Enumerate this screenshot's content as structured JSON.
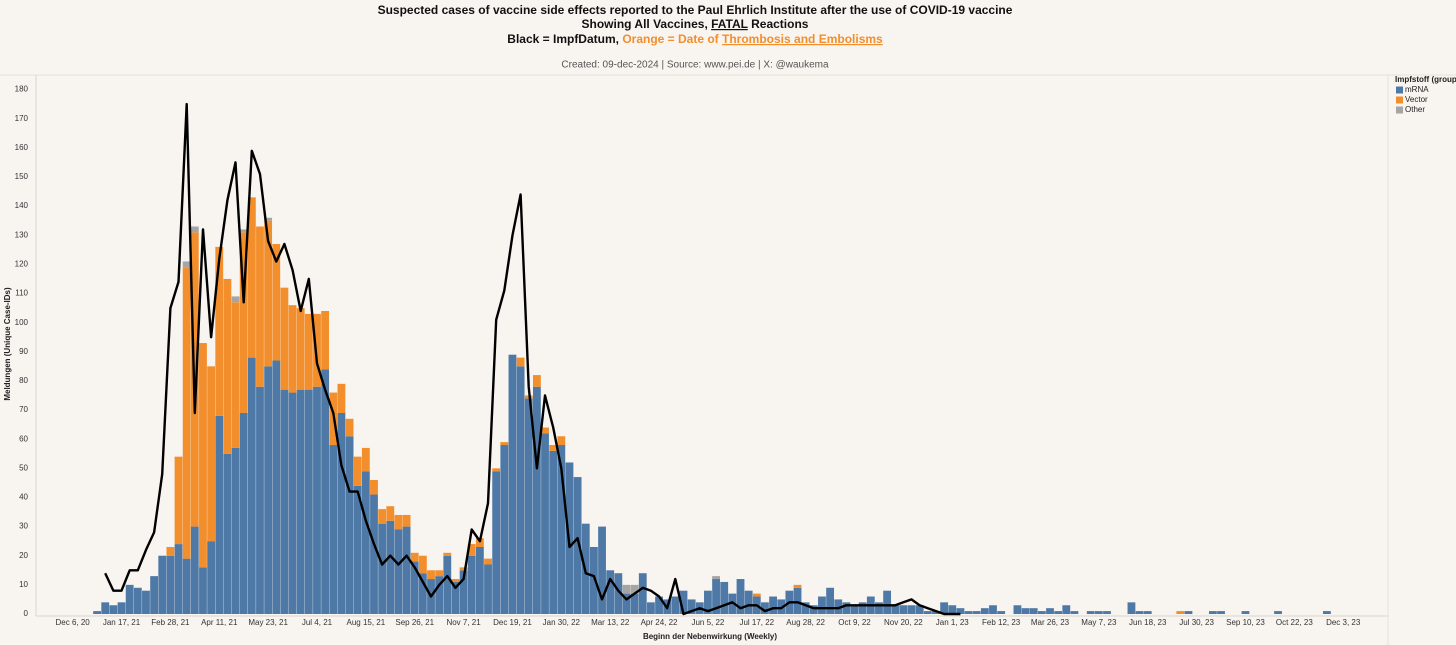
{
  "chart_data": {
    "type": "bar",
    "title": [
      [
        "Suspected cases of vaccine side effects reported to the Paul Ehrlich Institute after the use of COVID-19 vaccine"
      ],
      [
        "Showing All Vaccines, ",
        "FATAL",
        " Reactions"
      ],
      [
        "Black = ImpfDatum, ",
        "Orange = Date of ",
        "Thrombosis and Embolisms"
      ]
    ],
    "subtitle": "Created: 09-dec-2024 | Source: www.pei.de | X: @waukema",
    "y_label": "Meldungen (Unique Case-IDs)",
    "x_label": "Beginn der Nebenwirkung (Weekly)",
    "legend_title": "Impfstoff (group)",
    "legend": "right",
    "grid": false,
    "stacked": true,
    "ylim": [
      0,
      185
    ],
    "yticks": [
      0,
      10,
      20,
      30,
      40,
      50,
      60,
      70,
      80,
      90,
      100,
      110,
      120,
      130,
      140,
      150,
      160,
      170,
      180
    ],
    "categories": [
      null,
      null,
      null,
      null,
      "Dec 6, 20",
      null,
      null,
      null,
      null,
      null,
      "Jan 17, 21",
      null,
      null,
      null,
      null,
      null,
      "Feb 28, 21",
      null,
      null,
      null,
      null,
      null,
      "Apr 11, 21",
      null,
      null,
      null,
      null,
      null,
      "May 23, 21",
      null,
      null,
      null,
      null,
      null,
      "Jul 4, 21",
      null,
      null,
      null,
      null,
      null,
      "Aug 15, 21",
      null,
      null,
      null,
      null,
      null,
      "Sep 26, 21",
      null,
      null,
      null,
      null,
      null,
      "Nov 7, 21",
      null,
      null,
      null,
      null,
      null,
      "Dec 19, 21",
      null,
      null,
      null,
      null,
      null,
      "Jan 30, 22",
      null,
      null,
      null,
      null,
      null,
      "Mar 13, 22",
      null,
      null,
      null,
      null,
      null,
      "Apr 24, 22",
      null,
      null,
      null,
      null,
      null,
      "Jun 5, 22",
      null,
      null,
      null,
      null,
      null,
      "Jul 17, 22",
      null,
      null,
      null,
      null,
      null,
      "Aug 28, 22",
      null,
      null,
      null,
      null,
      null,
      "Oct 9, 22",
      null,
      null,
      null,
      null,
      null,
      "Nov 20, 22",
      null,
      null,
      null,
      null,
      null,
      "Jan 1, 23",
      null,
      null,
      null,
      null,
      null,
      "Feb 12, 23",
      null,
      null,
      null,
      null,
      null,
      "Mar 26, 23",
      null,
      null,
      null,
      null,
      null,
      "May 7, 23",
      null,
      null,
      null,
      null,
      null,
      "Jun 18, 23",
      null,
      null,
      null,
      null,
      null,
      "Jul 30, 23",
      null,
      null,
      null,
      null,
      null,
      "Sep 10, 23",
      null,
      null,
      null,
      null,
      null,
      "Oct 22, 23",
      null,
      null,
      null,
      null,
      null,
      "Dec 3, 23",
      null,
      null,
      null,
      null,
      null
    ],
    "series": [
      {
        "name": "mRNA",
        "color": "#4e79a7",
        "values": [
          0,
          0,
          0,
          0,
          0,
          0,
          0,
          1,
          4,
          3,
          4,
          10,
          9,
          8,
          13,
          20,
          20,
          24,
          19,
          30,
          16,
          25,
          68,
          55,
          57,
          69,
          88,
          78,
          85,
          87,
          77,
          76,
          77,
          77,
          78,
          84,
          58,
          69,
          61,
          44,
          49,
          41,
          31,
          32,
          29,
          30,
          18,
          14,
          12,
          13,
          20,
          11,
          15,
          20,
          23,
          17,
          49,
          58,
          89,
          85,
          74,
          78,
          62,
          56,
          58,
          52,
          47,
          31,
          23,
          30,
          15,
          14,
          7,
          7,
          14,
          4,
          6,
          5,
          6,
          8,
          5,
          4,
          8,
          12,
          11,
          7,
          12,
          8,
          6,
          4,
          6,
          5,
          8,
          9,
          4,
          3,
          6,
          9,
          5,
          4,
          3,
          4,
          6,
          4,
          8,
          3,
          3,
          3,
          3,
          1,
          1,
          4,
          3,
          2,
          1,
          1,
          2,
          3,
          1,
          0,
          3,
          2,
          2,
          1,
          2,
          1,
          3,
          1,
          0,
          1,
          1,
          1,
          0,
          0,
          4,
          1,
          1,
          0,
          0,
          0,
          0,
          1,
          0,
          0,
          1,
          1,
          0,
          0,
          1,
          0,
          0,
          0,
          1,
          0,
          0,
          0,
          0,
          0,
          1,
          0,
          0,
          0,
          0,
          0,
          0,
          0
        ]
      },
      {
        "name": "Vector",
        "color": "#f28e2b",
        "values": [
          0,
          0,
          0,
          0,
          0,
          0,
          0,
          0,
          0,
          0,
          0,
          0,
          0,
          0,
          0,
          0,
          3,
          30,
          100,
          101,
          77,
          60,
          58,
          60,
          50,
          62,
          55,
          55,
          50,
          40,
          35,
          30,
          28,
          26,
          25,
          20,
          18,
          10,
          6,
          10,
          8,
          5,
          5,
          5,
          5,
          4,
          3,
          6,
          3,
          2,
          1,
          1,
          1,
          4,
          3,
          2,
          1,
          1,
          0,
          3,
          1,
          4,
          2,
          2,
          3,
          0,
          0,
          0,
          0,
          0,
          0,
          0,
          0,
          0,
          0,
          0,
          0,
          0,
          0,
          0,
          0,
          0,
          0,
          0,
          0,
          0,
          0,
          0,
          1,
          0,
          0,
          0,
          0,
          1,
          0,
          0,
          0,
          0,
          0,
          0,
          0,
          0,
          0,
          0,
          0,
          0,
          0,
          0,
          0,
          0,
          0,
          0,
          0,
          0,
          0,
          0,
          0,
          0,
          0,
          0,
          0,
          0,
          0,
          0,
          0,
          0,
          0,
          0,
          0,
          0,
          0,
          0,
          0,
          0,
          0,
          0,
          0,
          0,
          0,
          0,
          1,
          0,
          0,
          0,
          0,
          0,
          0,
          0,
          0,
          0,
          0,
          0,
          0,
          0,
          0,
          0,
          0,
          0,
          0,
          0,
          0,
          0,
          0,
          0,
          0,
          0
        ]
      },
      {
        "name": "Other",
        "color": "#a5a5a5",
        "values": [
          0,
          0,
          0,
          0,
          0,
          0,
          0,
          0,
          0,
          0,
          0,
          0,
          0,
          0,
          0,
          0,
          0,
          0,
          2,
          2,
          0,
          0,
          0,
          0,
          2,
          1,
          0,
          0,
          1,
          0,
          0,
          0,
          0,
          0,
          0,
          0,
          0,
          0,
          0,
          0,
          0,
          0,
          0,
          0,
          0,
          0,
          0,
          0,
          0,
          0,
          0,
          0,
          0,
          0,
          0,
          0,
          0,
          0,
          0,
          0,
          0,
          0,
          0,
          0,
          0,
          0,
          0,
          0,
          0,
          0,
          0,
          0,
          3,
          3,
          0,
          0,
          0,
          0,
          0,
          0,
          0,
          0,
          0,
          1,
          0,
          0,
          0,
          0,
          0,
          0,
          0,
          0,
          0,
          0,
          0,
          0,
          0,
          0,
          0,
          0,
          0,
          0,
          0,
          0,
          0,
          0,
          0,
          0,
          0,
          0,
          0,
          0,
          0,
          0,
          0,
          0,
          0,
          0,
          0,
          0,
          0,
          0,
          0,
          0,
          0,
          0,
          0,
          0,
          0,
          0,
          0,
          0,
          0,
          0,
          0,
          0,
          0,
          0,
          0,
          0,
          0,
          0,
          0,
          0,
          0,
          0,
          0,
          0,
          0,
          0,
          0,
          0,
          0,
          0,
          0,
          0,
          0,
          0,
          0,
          0,
          0,
          0,
          0,
          0,
          0,
          0
        ]
      }
    ],
    "line": {
      "color": "#000000",
      "values": [
        null,
        null,
        null,
        null,
        null,
        null,
        null,
        null,
        14,
        8,
        8,
        15,
        15,
        22,
        28,
        48,
        105,
        114,
        175,
        69,
        132,
        95,
        122,
        142,
        155,
        107,
        159,
        151,
        128,
        121,
        127,
        118,
        104,
        115,
        86,
        77,
        69,
        51,
        42,
        42,
        32,
        24,
        17,
        20,
        17,
        20,
        16,
        11,
        6,
        10,
        13,
        9,
        12,
        29,
        25,
        38,
        101,
        111,
        130,
        144,
        78,
        50,
        75,
        64,
        50,
        23,
        26,
        14,
        13,
        5,
        12,
        8,
        5,
        7,
        9,
        8,
        6,
        2,
        12,
        0,
        1,
        2,
        1,
        2,
        3,
        4,
        2,
        3,
        3,
        1,
        2,
        2,
        4,
        4,
        3,
        2,
        2,
        2,
        2,
        3,
        3,
        3,
        3,
        3,
        3,
        3,
        4,
        5,
        3,
        2,
        1,
        0,
        0,
        0,
        null,
        null,
        null,
        null,
        null,
        null,
        null,
        null,
        null,
        null,
        null,
        null,
        null,
        null,
        null,
        null,
        null,
        null,
        null,
        null,
        null,
        null,
        null,
        null,
        null,
        null,
        null,
        null,
        null,
        null,
        null,
        null,
        null,
        null,
        null,
        null,
        null,
        null,
        null,
        null,
        null,
        null,
        null,
        null,
        null,
        null,
        null,
        null,
        null,
        null,
        null,
        null
      ]
    }
  }
}
